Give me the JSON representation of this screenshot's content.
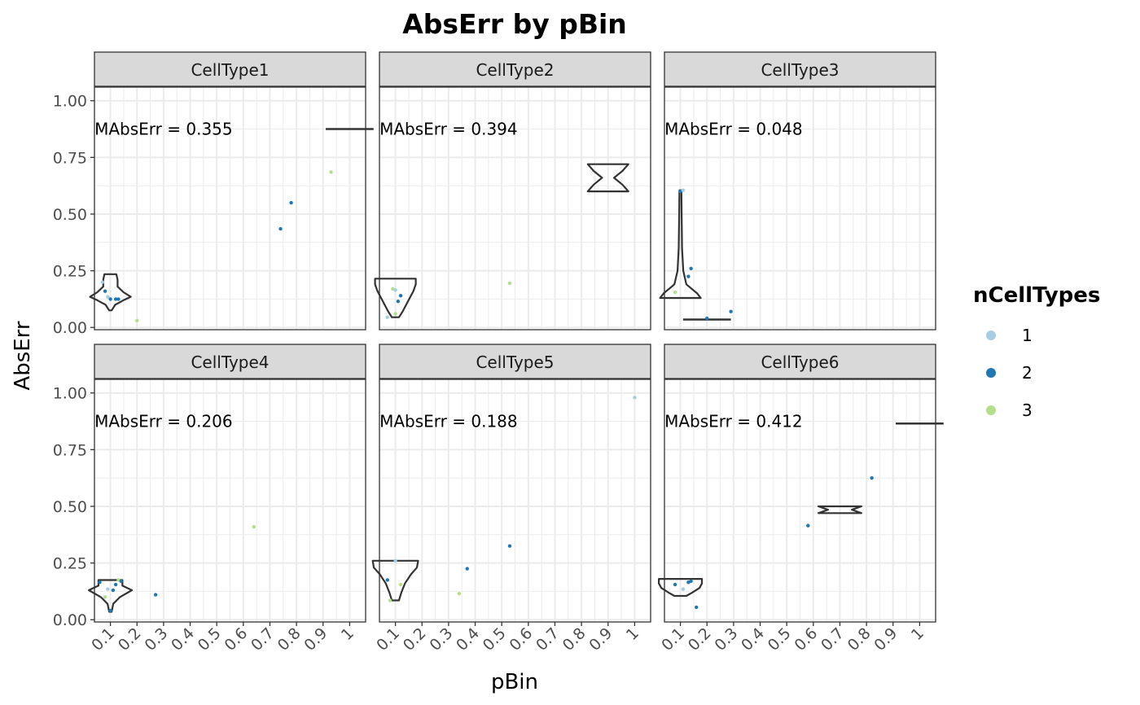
{
  "chart_data": {
    "type": "scatter",
    "title": "AbsErr by pBin",
    "xlabel": "pBin",
    "ylabel": "AbsErr",
    "x_categories": [
      "0.1",
      "0.2",
      "0.3",
      "0.4",
      "0.5",
      "0.6",
      "0.7",
      "0.8",
      "0.9",
      "1"
    ],
    "ylim": [
      -0.01,
      1.06
    ],
    "y_ticks": [
      0.0,
      0.25,
      0.5,
      0.75,
      1.0
    ],
    "y_tick_labels": [
      "0.00",
      "0.25",
      "0.50",
      "0.75",
      "1.00"
    ],
    "grid": true,
    "legend": {
      "title": "nCellTypes",
      "position": "right",
      "entries": [
        {
          "label": "1",
          "color": "#a6cee3"
        },
        {
          "label": "2",
          "color": "#1f78b4"
        },
        {
          "label": "3",
          "color": "#b2df8a"
        }
      ]
    },
    "outline_color": "#333333",
    "panels": [
      {
        "strip": "CellType1",
        "annotation": "MAbsErr = 0.355",
        "points": [
          {
            "x": 0.07,
            "y": 0.2,
            "group": "1"
          },
          {
            "x": 0.08,
            "y": 0.16,
            "group": "2"
          },
          {
            "x": 0.09,
            "y": 0.135,
            "group": "1"
          },
          {
            "x": 0.1,
            "y": 0.125,
            "group": "2"
          },
          {
            "x": 0.12,
            "y": 0.125,
            "group": "2"
          },
          {
            "x": 0.13,
            "y": 0.125,
            "group": "2"
          },
          {
            "x": 0.2,
            "y": 0.03,
            "group": "3"
          },
          {
            "x": 0.74,
            "y": 0.435,
            "group": "2"
          },
          {
            "x": 0.78,
            "y": 0.55,
            "group": "2"
          },
          {
            "x": 0.93,
            "y": 0.685,
            "group": "3"
          }
        ],
        "violins": [
          {
            "x": 0.1,
            "min": 0.075,
            "max": 0.235,
            "profile": [
              [
                0.075,
                0.05
              ],
              [
                0.1,
                0.2
              ],
              [
                0.12,
                0.55
              ],
              [
                0.135,
                0.85
              ],
              [
                0.155,
                0.55
              ],
              [
                0.18,
                0.3
              ],
              [
                0.21,
                0.3
              ],
              [
                0.235,
                0.25
              ]
            ]
          },
          {
            "x": 1.0,
            "min": 0.875,
            "max": 0.875,
            "profile": []
          }
        ]
      },
      {
        "strip": "CellType2",
        "annotation": "MAbsErr = 0.394",
        "points": [
          {
            "x": 0.07,
            "y": 0.045,
            "group": "1"
          },
          {
            "x": 0.09,
            "y": 0.17,
            "group": "3"
          },
          {
            "x": 0.1,
            "y": 0.165,
            "group": "1"
          },
          {
            "x": 0.11,
            "y": 0.115,
            "group": "2"
          },
          {
            "x": 0.12,
            "y": 0.14,
            "group": "2"
          },
          {
            "x": 0.1,
            "y": 0.06,
            "group": "3"
          },
          {
            "x": 0.53,
            "y": 0.195,
            "group": "3"
          }
        ],
        "violins": [
          {
            "x": 0.1,
            "min": 0.045,
            "max": 0.215,
            "profile": [
              [
                0.045,
                0.15
              ],
              [
                0.07,
                0.3
              ],
              [
                0.1,
                0.45
              ],
              [
                0.13,
                0.6
              ],
              [
                0.16,
                0.75
              ],
              [
                0.19,
                0.85
              ],
              [
                0.215,
                0.85
              ]
            ]
          },
          {
            "x": 0.9,
            "min": 0.6,
            "max": 0.72,
            "profile": [
              [
                0.6,
                0.85
              ],
              [
                0.63,
                0.6
              ],
              [
                0.66,
                0.25
              ],
              [
                0.69,
                0.6
              ],
              [
                0.72,
                0.85
              ]
            ]
          }
        ]
      },
      {
        "strip": "CellType3",
        "annotation": "MAbsErr = 0.048",
        "points": [
          {
            "x": 0.1,
            "y": 0.6,
            "group": "2"
          },
          {
            "x": 0.11,
            "y": 0.605,
            "group": "1"
          },
          {
            "x": 0.08,
            "y": 0.155,
            "group": "3"
          },
          {
            "x": 0.13,
            "y": 0.225,
            "group": "2"
          },
          {
            "x": 0.14,
            "y": 0.26,
            "group": "2"
          },
          {
            "x": 0.2,
            "y": 0.04,
            "group": "2"
          },
          {
            "x": 0.29,
            "y": 0.07,
            "group": "2"
          }
        ],
        "violins": [
          {
            "x": 0.1,
            "min": 0.13,
            "max": 0.605,
            "profile": [
              [
                0.13,
                0.85
              ],
              [
                0.15,
                0.7
              ],
              [
                0.19,
                0.25
              ],
              [
                0.25,
                0.12
              ],
              [
                0.35,
                0.07
              ],
              [
                0.5,
                0.05
              ],
              [
                0.605,
                0.04
              ]
            ]
          },
          {
            "x": 0.2,
            "min": 0.035,
            "max": 0.04,
            "profile": [
              [
                0.035,
                0.85
              ],
              [
                0.04,
                0.85
              ]
            ]
          }
        ]
      },
      {
        "strip": "CellType4",
        "annotation": "MAbsErr = 0.206",
        "points": [
          {
            "x": 0.06,
            "y": 0.165,
            "group": "2"
          },
          {
            "x": 0.08,
            "y": 0.1,
            "group": "3"
          },
          {
            "x": 0.09,
            "y": 0.135,
            "group": "1"
          },
          {
            "x": 0.1,
            "y": 0.04,
            "group": "2"
          },
          {
            "x": 0.11,
            "y": 0.13,
            "group": "2"
          },
          {
            "x": 0.12,
            "y": 0.155,
            "group": "2"
          },
          {
            "x": 0.13,
            "y": 0.175,
            "group": "3"
          },
          {
            "x": 0.14,
            "y": 0.17,
            "group": "2"
          },
          {
            "x": 0.27,
            "y": 0.11,
            "group": "2"
          },
          {
            "x": 0.64,
            "y": 0.41,
            "group": "3"
          }
        ],
        "violins": [
          {
            "x": 0.1,
            "min": 0.035,
            "max": 0.175,
            "profile": [
              [
                0.035,
                0.05
              ],
              [
                0.07,
                0.12
              ],
              [
                0.1,
                0.4
              ],
              [
                0.13,
                0.9
              ],
              [
                0.15,
                0.5
              ],
              [
                0.175,
                0.5
              ]
            ]
          }
        ]
      },
      {
        "strip": "CellType5",
        "annotation": "MAbsErr = 0.188",
        "points": [
          {
            "x": 0.07,
            "y": 0.175,
            "group": "2"
          },
          {
            "x": 0.08,
            "y": 0.085,
            "group": "3"
          },
          {
            "x": 0.12,
            "y": 0.155,
            "group": "3"
          },
          {
            "x": 0.1,
            "y": 0.26,
            "group": "1"
          },
          {
            "x": 0.34,
            "y": 0.115,
            "group": "3"
          },
          {
            "x": 0.37,
            "y": 0.225,
            "group": "2"
          },
          {
            "x": 0.53,
            "y": 0.325,
            "group": "2"
          },
          {
            "x": 1.0,
            "y": 0.98,
            "group": "1"
          }
        ],
        "violins": [
          {
            "x": 0.1,
            "min": 0.085,
            "max": 0.26,
            "profile": [
              [
                0.085,
                0.15
              ],
              [
                0.12,
                0.25
              ],
              [
                0.16,
                0.4
              ],
              [
                0.2,
                0.65
              ],
              [
                0.23,
                0.9
              ],
              [
                0.26,
                0.95
              ]
            ]
          }
        ]
      },
      {
        "strip": "CellType6",
        "annotation": "MAbsErr = 0.412",
        "points": [
          {
            "x": 0.08,
            "y": 0.155,
            "group": "2"
          },
          {
            "x": 0.11,
            "y": 0.135,
            "group": "1"
          },
          {
            "x": 0.13,
            "y": 0.165,
            "group": "2"
          },
          {
            "x": 0.14,
            "y": 0.17,
            "group": "2"
          },
          {
            "x": 0.16,
            "y": 0.055,
            "group": "2"
          },
          {
            "x": 0.58,
            "y": 0.415,
            "group": "2"
          },
          {
            "x": 0.82,
            "y": 0.625,
            "group": "2"
          }
        ],
        "violins": [
          {
            "x": 0.1,
            "min": 0.105,
            "max": 0.18,
            "profile": [
              [
                0.105,
                0.25
              ],
              [
                0.12,
                0.5
              ],
              [
                0.14,
                0.8
              ],
              [
                0.16,
                0.9
              ],
              [
                0.18,
                0.9
              ]
            ]
          },
          {
            "x": 0.7,
            "min": 0.47,
            "max": 0.5,
            "profile": [
              [
                0.47,
                0.9
              ],
              [
                0.485,
                0.5
              ],
              [
                0.5,
                0.9
              ]
            ]
          },
          {
            "x": 1.0,
            "min": 0.865,
            "max": 0.865,
            "profile": []
          }
        ]
      }
    ]
  }
}
